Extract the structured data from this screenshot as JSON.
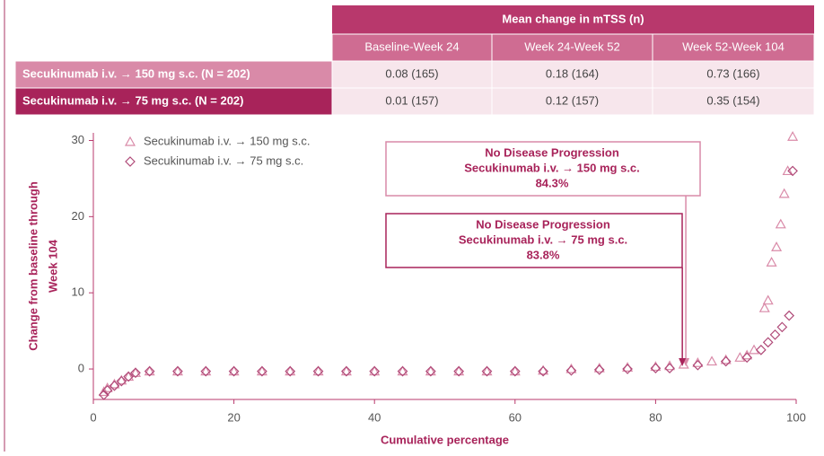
{
  "table": {
    "header": "Mean change in mTSS (n)",
    "columns": [
      "Baseline-Week 24",
      "Week 24-Week 52",
      "Week 52-Week 104"
    ],
    "rows": [
      {
        "label": "Secukinumab i.v. → 150 mg s.c. (N = 202)",
        "cells": [
          "0.08 (165)",
          "0.18 (164)",
          "0.73 (166)"
        ]
      },
      {
        "label": "Secukinumab i.v. → 75 mg s.c. (N = 202)",
        "cells": [
          "0.01 (157)",
          "0.12 (157)",
          "0.35 (154)"
        ]
      }
    ]
  },
  "chart_data": {
    "type": "scatter",
    "xlabel": "Cumulative percentage",
    "ylabel": [
      "Change from baseline through",
      "Week 104"
    ],
    "xlim": [
      0,
      100
    ],
    "xticks": [
      0,
      20,
      40,
      60,
      80,
      100
    ],
    "ylim": [
      -4,
      31
    ],
    "yticks": [
      0,
      10,
      20,
      30
    ],
    "series": [
      {
        "name": "Secukinumab i.v. → 150 mg s.c.",
        "marker": "triangle",
        "color": "#d98aa8",
        "x": [
          1.5,
          2,
          3,
          4,
          5,
          6,
          8,
          12,
          16,
          20,
          24,
          28,
          32,
          36,
          40,
          44,
          48,
          52,
          56,
          60,
          64,
          68,
          72,
          76,
          80,
          82,
          84,
          86,
          88,
          90,
          92,
          93,
          94,
          95.5,
          96,
          96.5,
          97.2,
          97.8,
          98.3,
          98.8,
          99.5
        ],
        "values": [
          -3,
          -2.5,
          -2,
          -1.5,
          -1,
          -0.5,
          -0.3,
          -0.3,
          -0.3,
          -0.3,
          -0.3,
          -0.3,
          -0.3,
          -0.3,
          -0.3,
          -0.3,
          -0.3,
          -0.3,
          -0.3,
          -0.3,
          -0.2,
          0,
          0.1,
          0.2,
          0.3,
          0.4,
          0.6,
          0.8,
          1,
          1.2,
          1.5,
          1.8,
          2.5,
          8,
          9,
          14,
          16,
          19,
          23,
          26,
          30.5
        ]
      },
      {
        "name": "Secukinumab i.v. → 75 mg s.c.",
        "marker": "diamond",
        "color": "#b04a78",
        "x": [
          1.5,
          2,
          3,
          4,
          5,
          6,
          8,
          12,
          16,
          20,
          24,
          28,
          32,
          36,
          40,
          44,
          48,
          52,
          56,
          60,
          64,
          68,
          72,
          76,
          80,
          82,
          86,
          90,
          93,
          95,
          96,
          97,
          98,
          99,
          99.5
        ],
        "values": [
          -3.4,
          -2.8,
          -2.2,
          -1.6,
          -1,
          -0.5,
          -0.3,
          -0.3,
          -0.3,
          -0.3,
          -0.3,
          -0.3,
          -0.3,
          -0.3,
          -0.3,
          -0.3,
          -0.3,
          -0.3,
          -0.3,
          -0.3,
          -0.3,
          -0.2,
          -0.1,
          0,
          0.1,
          0.1,
          0.5,
          1,
          1.5,
          2.5,
          3.5,
          4.5,
          5.5,
          7,
          26
        ]
      }
    ],
    "annotations": [
      {
        "title": "No Disease Progression",
        "label": "Secukinumab i.v. → 150 mg s.c.",
        "value": 84.3,
        "value_label": "84.3%",
        "color": "#d98aa8"
      },
      {
        "title": "No Disease Progression",
        "label": "Secukinumab i.v. → 75 mg s.c.",
        "value": 83.8,
        "value_label": "83.8%",
        "color": "#a8235a"
      }
    ]
  }
}
